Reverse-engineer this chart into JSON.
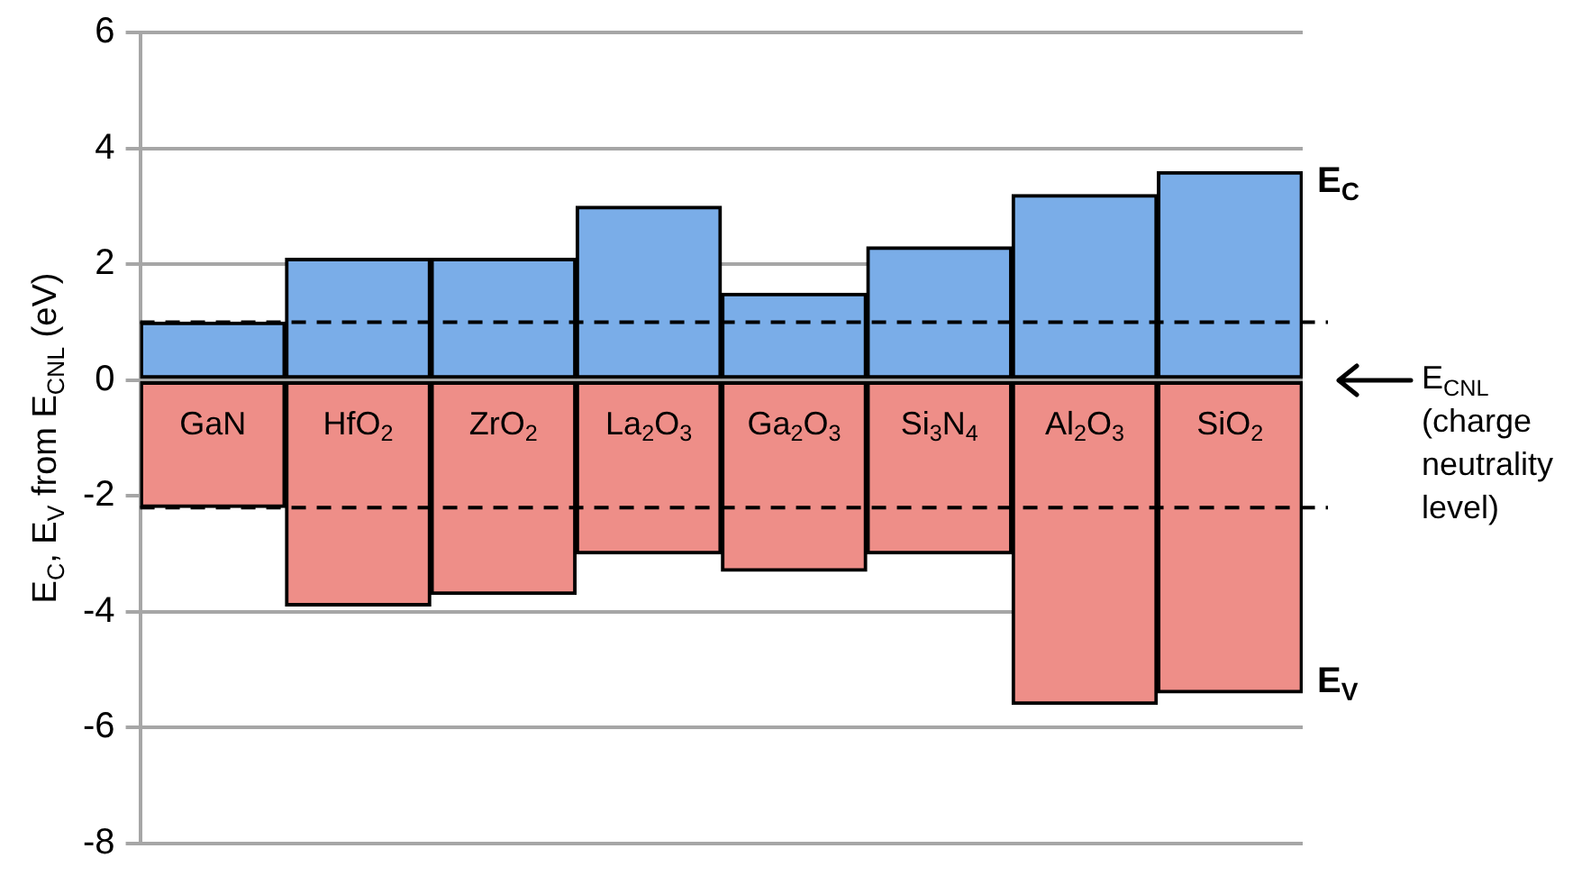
{
  "chart_data": {
    "type": "bar",
    "ylabel": "E$_{C}$, E$_{V}$ from E$_{CNL}$ (eV)",
    "categories": [
      "GaN",
      "HfO$_{2}$",
      "ZrO$_{2}$",
      "La$_{2}$O$_{3}$",
      "Ga$_{2}$O$_{3}$",
      "Si$_{3}$N$_{4}$",
      "Al$_{2}$O$_{3}$",
      "SiO$_{2}$"
    ],
    "series": [
      {
        "name": "E$_{C}$",
        "color": "#7aade8",
        "values": [
          1.0,
          2.1,
          2.1,
          3.0,
          1.5,
          2.3,
          3.2,
          3.6
        ]
      },
      {
        "name": "E$_{V}$",
        "color": "#ee8e88",
        "values": [
          -2.2,
          -3.9,
          -3.7,
          -3.0,
          -3.3,
          -3.0,
          -5.6,
          -5.4
        ]
      }
    ],
    "ylim": [
      -8,
      6
    ],
    "yticks": [
      -8,
      -6,
      -4,
      -2,
      0,
      2,
      4,
      6
    ],
    "grid": "y",
    "ref_lines": [
      {
        "axis": "y",
        "value": 1,
        "color": "#000000",
        "line_style": "dashed"
      },
      {
        "axis": "y",
        "value": -2.2,
        "color": "#000000",
        "line_style": "dashed"
      }
    ],
    "stacked": true,
    "annotations": [
      "E$_{CNL}$ (charge neutrality level)"
    ]
  }
}
